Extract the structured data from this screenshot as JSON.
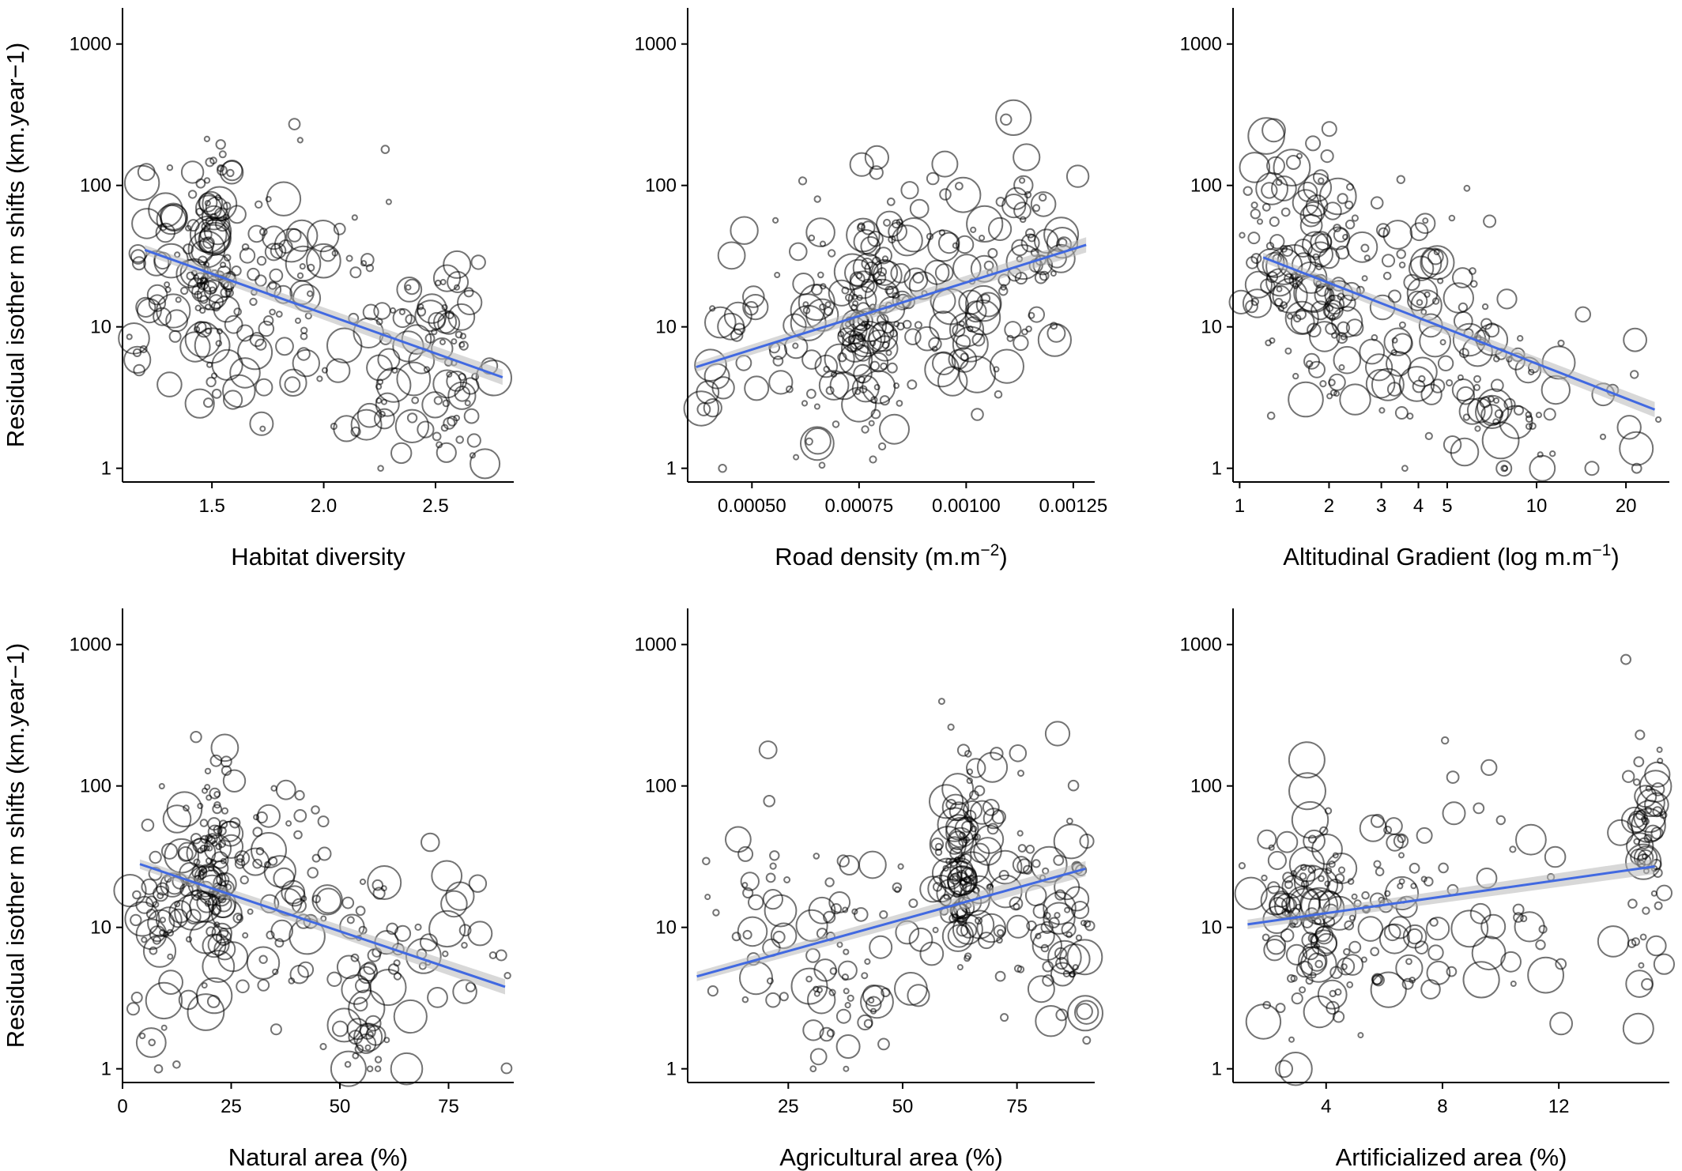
{
  "shared": {
    "ylabel": "Residual isother m shifts (km.year−1)",
    "y_ticks": [
      1,
      10,
      100,
      1000
    ],
    "y_tick_labels": [
      "1",
      "10",
      "100",
      "1000"
    ],
    "yscale": "log",
    "ylim": [
      0.8,
      1800
    ],
    "trend_color": "#4169e1",
    "point_color": "#000000"
  },
  "chart_data": [
    {
      "type": "scatter",
      "xlabel": "Habitat diversity",
      "xscale": "linear",
      "xlim": [
        1.1,
        2.85
      ],
      "x_ticks": [
        1.5,
        2.0,
        2.5
      ],
      "x_tick_labels": [
        "1.5",
        "2.0",
        "2.5"
      ],
      "trend": {
        "x": [
          1.2,
          2.8
        ],
        "y": [
          35,
          4.4
        ]
      },
      "clusters": [
        {
          "x": 1.5,
          "spread": 0.06,
          "center": 30,
          "n": 90
        },
        {
          "x": 1.3,
          "spread": 0.12,
          "center": 20,
          "n": 50
        },
        {
          "x": 1.8,
          "spread": 0.12,
          "center": 15,
          "n": 60
        },
        {
          "x": 2.25,
          "spread": 0.15,
          "center": 8,
          "n": 50
        },
        {
          "x": 2.55,
          "spread": 0.1,
          "center": 5,
          "n": 60
        }
      ]
    },
    {
      "type": "scatter",
      "xlabel": "Road density (m.m",
      "xlabel_sup": "−2",
      "xlabel_end": ")",
      "xscale": "linear",
      "xlim": [
        0.00035,
        0.0013
      ],
      "x_ticks": [
        0.0005,
        0.00075,
        0.001,
        0.00125
      ],
      "x_tick_labels": [
        "0.00050",
        "0.00075",
        "0.00100",
        "0.00125"
      ],
      "trend": {
        "x": [
          0.00037,
          0.00128
        ],
        "y": [
          5.2,
          38
        ]
      },
      "clusters": [
        {
          "x": 0.00078,
          "spread": 4e-05,
          "center": 12,
          "n": 110
        },
        {
          "x": 0.00065,
          "spread": 8e-05,
          "center": 8,
          "n": 50
        },
        {
          "x": 0.00095,
          "spread": 8e-05,
          "center": 18,
          "n": 60
        },
        {
          "x": 0.00115,
          "spread": 6e-05,
          "center": 30,
          "n": 60
        },
        {
          "x": 0.00045,
          "spread": 5e-05,
          "center": 5,
          "n": 20
        }
      ]
    },
    {
      "type": "scatter",
      "xlabel": "Altitudinal Gradient (log m.m",
      "xlabel_sup": "−1",
      "xlabel_end": ")",
      "xscale": "log",
      "xlim": [
        0.95,
        28
      ],
      "x_ticks": [
        1,
        2,
        3,
        4,
        5,
        10,
        20
      ],
      "x_tick_labels": [
        "1",
        "2",
        "3",
        "4",
        "5",
        "10",
        "20"
      ],
      "trend": {
        "x": [
          1.2,
          25
        ],
        "y": [
          31,
          2.6
        ]
      },
      "clusters": [
        {
          "x": 1.4,
          "spread": 0.12,
          "center": 25,
          "n": 110
        },
        {
          "x": 2.2,
          "spread": 0.12,
          "center": 15,
          "n": 50
        },
        {
          "x": 4.0,
          "spread": 0.1,
          "center": 12,
          "n": 50
        },
        {
          "x": 6.5,
          "spread": 0.12,
          "center": 5,
          "n": 50
        },
        {
          "x": 12,
          "spread": 0.15,
          "center": 3,
          "n": 30
        }
      ]
    },
    {
      "type": "scatter",
      "xlabel": "Natural area (%)",
      "xscale": "linear",
      "xlim": [
        0,
        90
      ],
      "x_ticks": [
        0,
        25,
        50,
        75
      ],
      "x_tick_labels": [
        "0",
        "25",
        "50",
        "75"
      ],
      "trend": {
        "x": [
          4,
          88
        ],
        "y": [
          28,
          3.8
        ]
      },
      "clusters": [
        {
          "x": 21,
          "spread": 3,
          "center": 30,
          "n": 110
        },
        {
          "x": 8,
          "spread": 4,
          "center": 12,
          "n": 50
        },
        {
          "x": 35,
          "spread": 6,
          "center": 15,
          "n": 50
        },
        {
          "x": 56,
          "spread": 5,
          "center": 5,
          "n": 50
        },
        {
          "x": 75,
          "spread": 8,
          "center": 8,
          "n": 30
        }
      ]
    },
    {
      "type": "scatter",
      "xlabel": "Agricultural area (%)",
      "xscale": "linear",
      "xlim": [
        3,
        92
      ],
      "x_ticks": [
        25,
        50,
        75
      ],
      "x_tick_labels": [
        "25",
        "50",
        "75"
      ],
      "trend": {
        "x": [
          5,
          90
        ],
        "y": [
          4.5,
          26
        ]
      },
      "clusters": [
        {
          "x": 63,
          "spread": 3,
          "center": 25,
          "n": 110
        },
        {
          "x": 40,
          "spread": 6,
          "center": 5,
          "n": 60
        },
        {
          "x": 78,
          "spread": 6,
          "center": 15,
          "n": 50
        },
        {
          "x": 88,
          "spread": 3,
          "center": 10,
          "n": 40
        },
        {
          "x": 20,
          "spread": 7,
          "center": 15,
          "n": 30
        }
      ]
    },
    {
      "type": "scatter",
      "xlabel": "Artificialized area (%)",
      "xscale": "linear",
      "xlim": [
        0.8,
        15.8
      ],
      "x_ticks": [
        4,
        8,
        12
      ],
      "x_tick_labels": [
        "4",
        "8",
        "12"
      ],
      "trend": {
        "x": [
          1.3,
          15.3
        ],
        "y": [
          10.5,
          27
        ]
      },
      "clusters": [
        {
          "x": 3.5,
          "spread": 0.9,
          "center": 12,
          "n": 110
        },
        {
          "x": 6.5,
          "spread": 1.0,
          "center": 15,
          "n": 60
        },
        {
          "x": 15,
          "spread": 0.35,
          "center": 25,
          "n": 60
        },
        {
          "x": 10.5,
          "spread": 1.2,
          "center": 12,
          "n": 25
        }
      ]
    }
  ]
}
